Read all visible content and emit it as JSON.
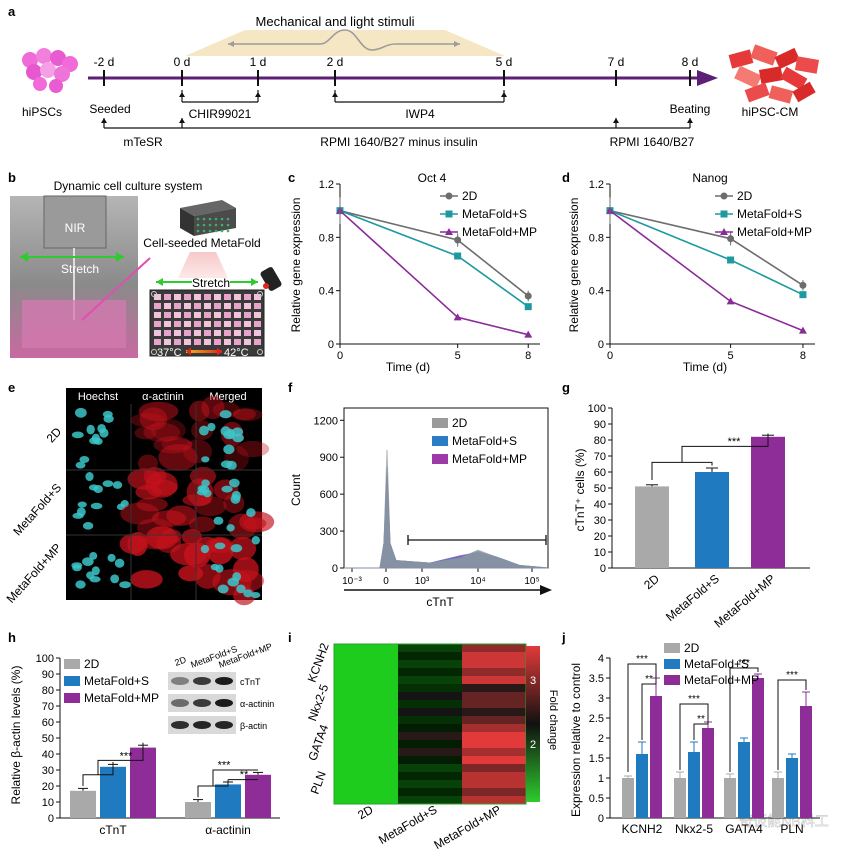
{
  "panel_a": {
    "label": "a",
    "stimuli_title": "Mechanical and light stimuli",
    "start_cells": "hiPSCs",
    "end_cells": "hiPSC-CM",
    "days": [
      "-2 d",
      "0 d",
      "1 d",
      "2 d",
      "5 d",
      "7 d",
      "8 d"
    ],
    "seeded": "Seeded",
    "beating": "Beating",
    "chir": "CHIR99021",
    "iwp4": "IWP4",
    "mtesr": "mTeSR",
    "rpmi_minus": "RPMI 1640/B27 minus insulin",
    "rpmi": "RPMI 1640/B27"
  },
  "panel_b": {
    "label": "b",
    "title": "Dynamic cell culture system",
    "nir": "NIR",
    "stretch": "Stretch",
    "metafold": "Cell-seeded MetaFold",
    "stretch2": "Stretch",
    "temp_low": "37°C",
    "temp_high": "42°C"
  },
  "legend_series": [
    "2D",
    "MetaFold+S",
    "MetaFold+MP"
  ],
  "colors": {
    "s2d": "#6d6d6d",
    "ms": "#1c9aa0",
    "mmp": "#8b2a9a",
    "bar2d": "#a9a9a9",
    "barms": "#1f7ac0",
    "barmmp": "#8e2d98",
    "purple": "#5d1f73"
  },
  "panel_c": {
    "label": "c",
    "chart_data": {
      "type": "line",
      "title": "Oct 4",
      "xlabel": "Time (d)",
      "ylabel": "Relative gene expression",
      "x": [
        0,
        5,
        8
      ],
      "xticks": [
        "0",
        "5",
        "8"
      ],
      "yticks": [
        "0",
        "0.4",
        "0.8",
        "1.2"
      ],
      "ylim": [
        0,
        1.2
      ],
      "series": [
        {
          "name": "2D",
          "values": [
            1.0,
            0.78,
            0.36
          ]
        },
        {
          "name": "MetaFold+S",
          "values": [
            1.0,
            0.66,
            0.28
          ]
        },
        {
          "name": "MetaFold+MP",
          "values": [
            1.0,
            0.2,
            0.07
          ]
        }
      ]
    }
  },
  "panel_d": {
    "label": "d",
    "chart_data": {
      "type": "line",
      "title": "Nanog",
      "xlabel": "Time (d)",
      "ylabel": "Relative gene expression",
      "x": [
        0,
        5,
        8
      ],
      "xticks": [
        "0",
        "5",
        "8"
      ],
      "yticks": [
        "0",
        "0.4",
        "0.8",
        "1.2"
      ],
      "ylim": [
        0,
        1.2
      ],
      "series": [
        {
          "name": "2D",
          "values": [
            1.0,
            0.79,
            0.44
          ]
        },
        {
          "name": "MetaFold+S",
          "values": [
            1.0,
            0.63,
            0.37
          ]
        },
        {
          "name": "MetaFold+MP",
          "values": [
            1.0,
            0.32,
            0.1
          ]
        }
      ]
    }
  },
  "panel_e": {
    "label": "e",
    "columns": [
      "Hoechst",
      "α-actinin",
      "Merged"
    ],
    "rows": [
      "2D",
      "MetaFold+S",
      "MetaFold+MP"
    ]
  },
  "panel_f": {
    "label": "f",
    "chart_data": {
      "type": "area",
      "xlabel": "cTnT",
      "ylabel": "Count",
      "yticks": [
        "0",
        "300",
        "600",
        "900",
        "1200"
      ],
      "ylim": [
        0,
        1300
      ],
      "xticks": [
        "10⁻³",
        "0",
        "10³",
        "10⁴",
        "10⁵"
      ],
      "series_names": [
        "2D",
        "MetaFold+S",
        "MetaFold+MP"
      ]
    }
  },
  "panel_g": {
    "label": "g",
    "chart_data": {
      "type": "bar",
      "ylabel": "cTnT⁺ cells (%)",
      "categories": [
        "2D",
        "MetaFold+S",
        "MetaFold+MP"
      ],
      "values": [
        51,
        60,
        82
      ],
      "errors": [
        1,
        2.5,
        1
      ],
      "ylim": [
        0,
        100
      ],
      "yticks": [
        "0",
        "10",
        "20",
        "30",
        "40",
        "50",
        "60",
        "70",
        "80",
        "90",
        "100"
      ],
      "significance": "***"
    }
  },
  "panel_h": {
    "label": "h",
    "blot_lanes": [
      "2D",
      "MetaFold+S",
      "MetaFold+MP"
    ],
    "blot_rows": [
      "cTnT",
      "α-actinin",
      "β-actin"
    ],
    "chart_data": {
      "type": "bar",
      "ylabel": "Relative β-actin levels (%)",
      "categories": [
        "cTnT",
        "α-actinin"
      ],
      "ylim": [
        0,
        100
      ],
      "yticks": [
        "0",
        "10",
        "20",
        "30",
        "40",
        "50",
        "60",
        "70",
        "80",
        "90",
        "100"
      ],
      "series": [
        {
          "name": "2D",
          "values": [
            17,
            10
          ]
        },
        {
          "name": "MetaFold+S",
          "values": [
            32,
            21
          ]
        },
        {
          "name": "MetaFold+MP",
          "values": [
            44,
            27
          ]
        }
      ],
      "significance": [
        "***",
        "***",
        "**"
      ]
    }
  },
  "panel_i": {
    "label": "i",
    "chart_data": {
      "type": "heatmap",
      "rows": [
        "KCNH2",
        "Nkx2-5",
        "GATA4",
        "PLN"
      ],
      "columns": [
        "2D",
        "MetaFold+S",
        "MetaFold+MP"
      ],
      "values": [
        [
          1,
          1.8,
          2.9
        ],
        [
          1,
          1.9,
          2.4
        ],
        [
          1,
          2.0,
          3.0
        ],
        [
          1,
          1.8,
          2.8
        ]
      ],
      "colorbar_label": "Fold change",
      "colorbar_ticks": [
        "3",
        "2"
      ]
    }
  },
  "panel_j": {
    "label": "j",
    "chart_data": {
      "type": "bar",
      "ylabel": "Expression relative to control",
      "categories": [
        "KCNH2",
        "Nkx2-5",
        "GATA4",
        "PLN"
      ],
      "ylim": [
        0,
        4
      ],
      "yticks": [
        "0",
        "0.5",
        "1",
        "1.5",
        "2",
        "2.5",
        "3",
        "3.5",
        "4"
      ],
      "series": [
        {
          "name": "2D",
          "values": [
            1.0,
            1.0,
            1.0,
            1.0
          ]
        },
        {
          "name": "MetaFold+S",
          "values": [
            1.6,
            1.65,
            1.9,
            1.5
          ]
        },
        {
          "name": "MetaFold+MP",
          "values": [
            3.05,
            2.25,
            3.5,
            2.8
          ]
        }
      ],
      "errors": [
        [
          0.05,
          0.15,
          0.1,
          0.15
        ],
        [
          0.3,
          0.25,
          0.1,
          0.1
        ],
        [
          0.45,
          0.15,
          0.1,
          0.35
        ]
      ],
      "significance": [
        "***",
        "**",
        "***",
        "**",
        "***",
        "***"
      ]
    },
    "watermark": "奇仮能NB科工"
  }
}
